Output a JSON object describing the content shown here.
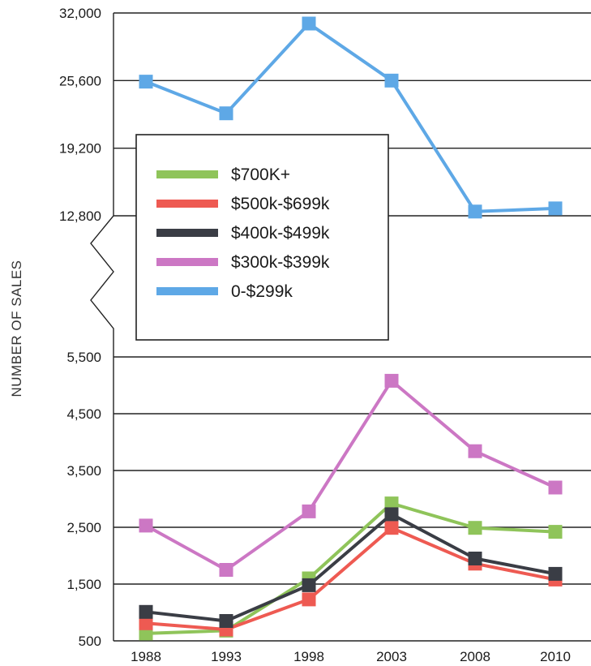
{
  "chart_data": {
    "type": "line",
    "title": "",
    "ylabel": "NUMBER OF SALES",
    "xlabel": "",
    "categories": [
      "1988",
      "1993",
      "1998",
      "2003",
      "2008",
      "2010"
    ],
    "axis_break": true,
    "upper_panel": {
      "ylim": [
        12800,
        32000
      ],
      "ticks": [
        12800,
        19200,
        25600,
        32000
      ],
      "tick_labels": [
        "12,800",
        "19,200",
        "25,600",
        "32,000"
      ]
    },
    "lower_panel": {
      "ylim": [
        500,
        5500
      ],
      "ticks": [
        500,
        1500,
        2500,
        3500,
        4500,
        5500
      ],
      "tick_labels": [
        "500",
        "1,500",
        "2,500",
        "3,500",
        "4,500",
        "5,500"
      ]
    },
    "grid": true,
    "legend_position": "upper-left inside chart",
    "series": [
      {
        "name": "$700K+",
        "color": "#8fc45a",
        "panel": "lower",
        "values": [
          630,
          680,
          1600,
          2920,
          2490,
          2420
        ]
      },
      {
        "name": "$500k-$699k",
        "color": "#ee5a52",
        "panel": "lower",
        "values": [
          810,
          700,
          1230,
          2490,
          1860,
          1580
        ]
      },
      {
        "name": "$400k-$499k",
        "color": "#3a3d45",
        "panel": "lower",
        "values": [
          1010,
          850,
          1480,
          2730,
          1950,
          1680
        ]
      },
      {
        "name": "$300k-$399k",
        "color": "#cc77c4",
        "panel": "lower",
        "values": [
          2530,
          1750,
          2780,
          5080,
          3840,
          3200
        ]
      },
      {
        "name": "0-$299k",
        "color": "#5ea8e6",
        "panel": "upper",
        "values": [
          25500,
          22500,
          31000,
          25600,
          13200,
          13500
        ]
      }
    ]
  }
}
